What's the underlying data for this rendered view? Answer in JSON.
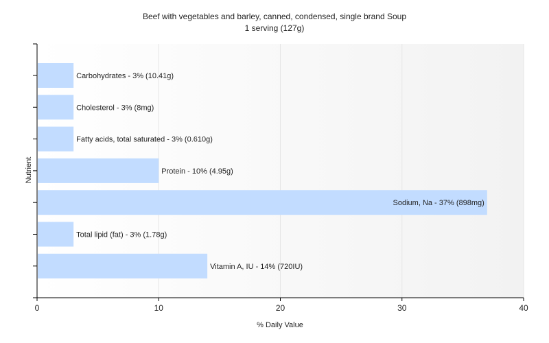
{
  "chart_data": {
    "type": "bar",
    "orientation": "horizontal",
    "title": "Beef with vegetables and barley, canned, condensed, single brand Soup",
    "subtitle": "1 serving (127g)",
    "xlabel": "% Daily Value",
    "ylabel": "Nutrient",
    "xlim": [
      0,
      40
    ],
    "x_ticks": [
      0,
      10,
      20,
      30,
      40
    ],
    "grid": true,
    "categories": [
      "Carbohydrates",
      "Cholesterol",
      "Fatty acids, total saturated",
      "Protein",
      "Sodium, Na",
      "Total lipid (fat)",
      "Vitamin A, IU"
    ],
    "values": [
      3,
      3,
      3,
      10,
      37,
      3,
      14
    ],
    "bar_labels": [
      "Carbohydrates - 3% (10.41g)",
      "Cholesterol - 3% (8mg)",
      "Fatty acids, total saturated - 3% (0.610g)",
      "Protein - 10% (4.95g)",
      "Sodium, Na - 37% (898mg)",
      "Total lipid (fat) - 3% (1.78g)",
      "Vitamin A, IU - 14% (720IU)"
    ],
    "colors": {
      "bar": "#c2dcff",
      "axis": "#000000",
      "grid": "#e6e6e6",
      "plot_bg_start": "#ffffff",
      "plot_bg_end": "#f2f2f2"
    }
  }
}
